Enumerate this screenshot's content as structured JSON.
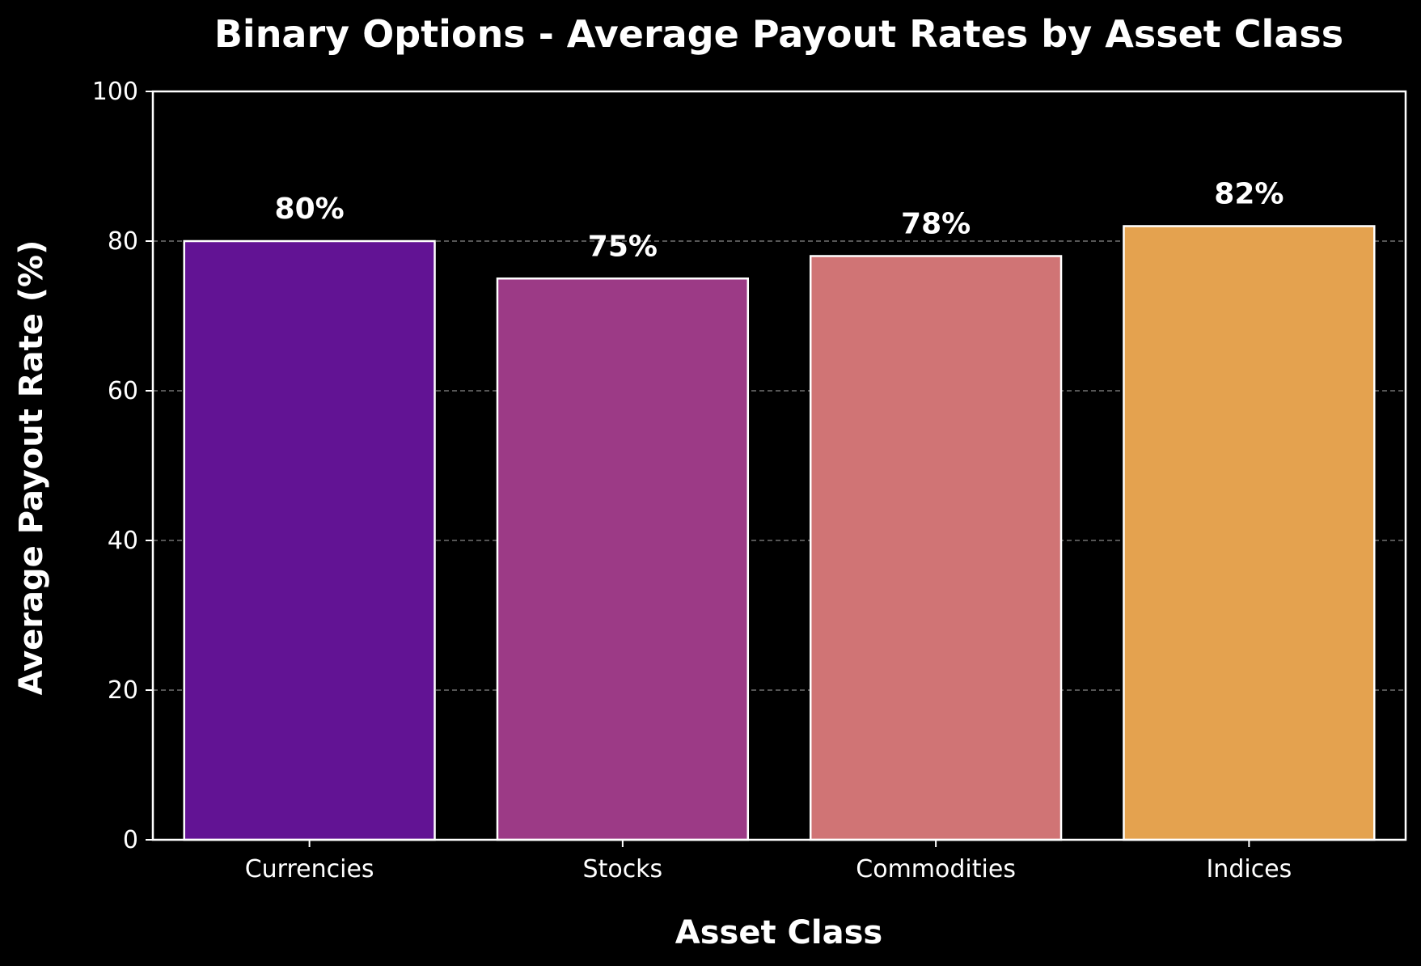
{
  "chart_data": {
    "type": "bar",
    "title": "Binary Options - Average Payout Rates by Asset Class",
    "xlabel": "Asset Class",
    "ylabel": "Average Payout Rate (%)",
    "categories": [
      "Currencies",
      "Stocks",
      "Commodities",
      "Indices"
    ],
    "values": [
      80,
      75,
      78,
      82
    ],
    "data_labels": [
      "80%",
      "75%",
      "78%",
      "82%"
    ],
    "bar_colors": [
      "#621394",
      "#9c3a86",
      "#d07475",
      "#e4a24f"
    ],
    "ylim": [
      0,
      100
    ],
    "yticks": [
      0,
      20,
      40,
      60,
      80,
      100
    ],
    "grid": "horizontal-dashed",
    "legend": "none"
  },
  "colors": {
    "background": "#000000",
    "foreground": "#ffffff",
    "grid": "#888888"
  }
}
